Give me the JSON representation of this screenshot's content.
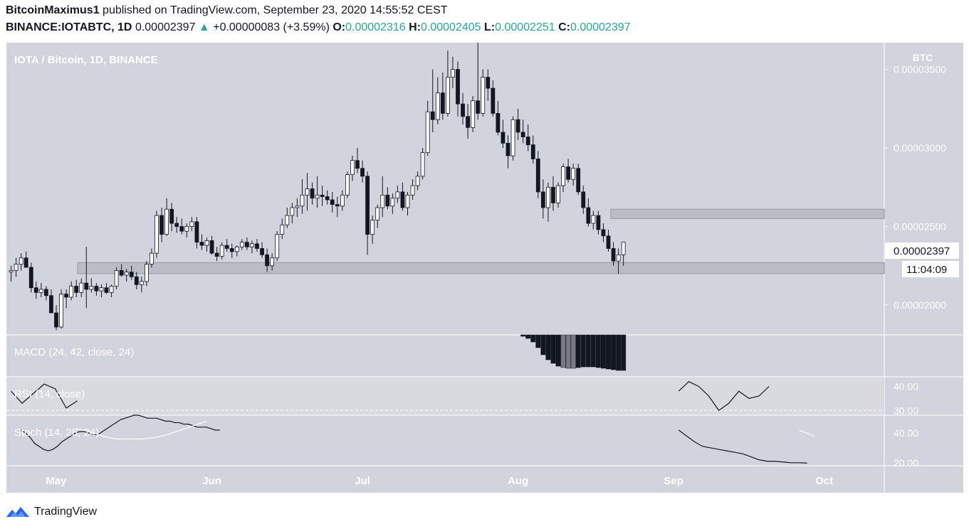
{
  "header": {
    "author": "BitcoinMaximus1",
    "published_text": "published on TradingView.com, September 23, 2020 14:55:52 CEST",
    "symbol": "BINANCE:IOTABTC, 1D",
    "last": "0.00002397",
    "change": "+0.00000083 (+3.59%)",
    "o_label": "O:",
    "o_val": "0.00002316",
    "h_label": "H:",
    "h_val": "0.00002405",
    "l_label": "L:",
    "l_val": "0.00002251",
    "c_label": "C:",
    "c_val": "0.00002397"
  },
  "footer": {
    "brand": "TradingView",
    "logo_icon": "tradingview-logo-icon"
  },
  "colors": {
    "chart_bg": "#d1d4dc",
    "bull_fill": "#ffffff",
    "bear_fill": "#131722",
    "zone": "#b2b5be",
    "accent": "#26a69a"
  },
  "chart_data": {
    "type": "candlestick",
    "title": "IOTA / Bitcoin, 1D, BINANCE",
    "currency": "BTC",
    "y_ticks": [
      "0.00003500",
      "0.00003000",
      "0.00002500",
      "0.00002000"
    ],
    "y_tick_values": [
      3.5e-05,
      3e-05,
      2.5e-05,
      2e-05
    ],
    "ylim": [
      1.81e-05,
      3.67e-05
    ],
    "last_price_label": "0.00002397",
    "countdown_label": "11:04:09",
    "x_labels": [
      "May",
      "Jun",
      "Jul",
      "Aug",
      "Sep",
      "Oct"
    ],
    "x_label_days": [
      0,
      31,
      61,
      92,
      123,
      153
    ],
    "day_zero": "2020-05-01",
    "support_zones": [
      {
        "from": 2.2e-05,
        "to": 2.27e-05
      },
      {
        "from": 2.55e-05,
        "to": 2.61e-05
      }
    ],
    "candles_ohlc": [
      [
        2.21e-05,
        2.25e-05,
        2.15e-05,
        2.22e-05
      ],
      [
        2.22e-05,
        2.3e-05,
        2.18e-05,
        2.26e-05
      ],
      [
        2.26e-05,
        2.33e-05,
        2.22e-05,
        2.3e-05
      ],
      [
        2.3e-05,
        2.34e-05,
        2.25e-05,
        2.24e-05
      ],
      [
        2.24e-05,
        2.27e-05,
        2.08e-05,
        2.11e-05
      ],
      [
        2.11e-05,
        2.15e-05,
        2.04e-05,
        2.08e-05
      ],
      [
        2.08e-05,
        2.14e-05,
        2.05e-05,
        2.1e-05
      ],
      [
        2.1e-05,
        2.12e-05,
        2.03e-05,
        2.06e-05
      ],
      [
        2.06e-05,
        2.1e-05,
        2e-05,
        1.95e-05
      ],
      [
        1.95e-05,
        2e-05,
        1.84e-05,
        1.86e-05
      ],
      [
        1.86e-05,
        2.1e-05,
        1.85e-05,
        2.07e-05
      ],
      [
        2.07e-05,
        2.1e-05,
        1.98e-05,
        2.05e-05
      ],
      [
        2.05e-05,
        2.15e-05,
        2.03e-05,
        2.12e-05
      ],
      [
        2.12e-05,
        2.16e-05,
        2.05e-05,
        2.08e-05
      ],
      [
        2.08e-05,
        2.17e-05,
        2.05e-05,
        2.14e-05
      ],
      [
        2.14e-05,
        2.37e-05,
        1.98e-05,
        2.1e-05
      ],
      [
        2.1e-05,
        2.17e-05,
        2.08e-05,
        2.12e-05
      ],
      [
        2.12e-05,
        2.14e-05,
        2.06e-05,
        2.09e-05
      ],
      [
        2.09e-05,
        2.13e-05,
        2.05e-05,
        2.11e-05
      ],
      [
        2.11e-05,
        2.14e-05,
        2.07e-05,
        2.08e-05
      ],
      [
        2.08e-05,
        2.13e-05,
        2.05e-05,
        2.12e-05
      ],
      [
        2.12e-05,
        2.24e-05,
        2.1e-05,
        2.22e-05
      ],
      [
        2.22e-05,
        2.26e-05,
        2.18e-05,
        2.19e-05
      ],
      [
        2.19e-05,
        2.23e-05,
        2.15e-05,
        2.21e-05
      ],
      [
        2.21e-05,
        2.25e-05,
        2.16e-05,
        2.18e-05
      ],
      [
        2.18e-05,
        2.21e-05,
        2.1e-05,
        2.13e-05
      ],
      [
        2.13e-05,
        2.18e-05,
        2.08e-05,
        2.15e-05
      ],
      [
        2.15e-05,
        2.28e-05,
        2.12e-05,
        2.26e-05
      ],
      [
        2.26e-05,
        2.36e-05,
        2.24e-05,
        2.33e-05
      ],
      [
        2.33e-05,
        2.6e-05,
        2.3e-05,
        2.57e-05
      ],
      [
        2.57e-05,
        2.62e-05,
        2.4e-05,
        2.45e-05
      ],
      [
        2.45e-05,
        2.68e-05,
        2.44e-05,
        2.61e-05
      ],
      [
        2.61e-05,
        2.65e-05,
        2.47e-05,
        2.52e-05
      ],
      [
        2.52e-05,
        2.56e-05,
        2.46e-05,
        2.5e-05
      ],
      [
        2.5e-05,
        2.55e-05,
        2.45e-05,
        2.47e-05
      ],
      [
        2.47e-05,
        2.52e-05,
        2.43e-05,
        2.5e-05
      ],
      [
        2.5e-05,
        2.56e-05,
        2.47e-05,
        2.53e-05
      ],
      [
        2.53e-05,
        2.56e-05,
        2.36e-05,
        2.4e-05
      ],
      [
        2.4e-05,
        2.45e-05,
        2.35e-05,
        2.38e-05
      ],
      [
        2.38e-05,
        2.43e-05,
        2.34e-05,
        2.41e-05
      ],
      [
        2.41e-05,
        2.44e-05,
        2.32e-05,
        2.33e-05
      ],
      [
        2.33e-05,
        2.37e-05,
        2.28e-05,
        2.31e-05
      ],
      [
        2.31e-05,
        2.4e-05,
        2.29e-05,
        2.38e-05
      ],
      [
        2.38e-05,
        2.42e-05,
        2.34e-05,
        2.36e-05
      ],
      [
        2.36e-05,
        2.39e-05,
        2.3e-05,
        2.34e-05
      ],
      [
        2.34e-05,
        2.38e-05,
        2.31e-05,
        2.37e-05
      ],
      [
        2.37e-05,
        2.42e-05,
        2.35e-05,
        2.4e-05
      ],
      [
        2.4e-05,
        2.43e-05,
        2.35e-05,
        2.37e-05
      ],
      [
        2.37e-05,
        2.41e-05,
        2.33e-05,
        2.39e-05
      ],
      [
        2.39e-05,
        2.42e-05,
        2.34e-05,
        2.36e-05
      ],
      [
        2.36e-05,
        2.4e-05,
        2.3e-05,
        2.32e-05
      ],
      [
        2.32e-05,
        2.36e-05,
        2.21e-05,
        2.25e-05
      ],
      [
        2.25e-05,
        2.33e-05,
        2.22e-05,
        2.3e-05
      ],
      [
        2.3e-05,
        2.47e-05,
        2.28e-05,
        2.45e-05
      ],
      [
        2.45e-05,
        2.55e-05,
        2.42e-05,
        2.51e-05
      ],
      [
        2.51e-05,
        2.62e-05,
        2.49e-05,
        2.57e-05
      ],
      [
        2.57e-05,
        2.65e-05,
        2.52e-05,
        2.62e-05
      ],
      [
        2.62e-05,
        2.68e-05,
        2.56e-05,
        2.63e-05
      ],
      [
        2.63e-05,
        2.8e-05,
        2.58e-05,
        2.7e-05
      ],
      [
        2.7e-05,
        2.84e-05,
        2.6e-05,
        2.74e-05
      ],
      [
        2.74e-05,
        2.78e-05,
        2.64e-05,
        2.68e-05
      ],
      [
        2.68e-05,
        2.82e-05,
        2.62e-05,
        2.7e-05
      ],
      [
        2.7e-05,
        2.76e-05,
        2.63e-05,
        2.69e-05
      ],
      [
        2.69e-05,
        2.73e-05,
        2.64e-05,
        2.67e-05
      ],
      [
        2.67e-05,
        2.72e-05,
        2.59e-05,
        2.64e-05
      ],
      [
        2.64e-05,
        2.69e-05,
        2.56e-05,
        2.63e-05
      ],
      [
        2.63e-05,
        2.73e-05,
        2.6e-05,
        2.7e-05
      ],
      [
        2.7e-05,
        2.85e-05,
        2.68e-05,
        2.83e-05
      ],
      [
        2.83e-05,
        2.95e-05,
        2.79e-05,
        2.92e-05
      ],
      [
        2.92e-05,
        3e-05,
        2.84e-05,
        2.87e-05
      ],
      [
        2.87e-05,
        2.92e-05,
        2.78e-05,
        2.82e-05
      ],
      [
        2.82e-05,
        2.85e-05,
        2.32e-05,
        2.45e-05
      ],
      [
        2.45e-05,
        2.57e-05,
        2.39e-05,
        2.54e-05
      ],
      [
        2.54e-05,
        2.64e-05,
        2.49e-05,
        2.62e-05
      ],
      [
        2.62e-05,
        2.82e-05,
        2.56e-05,
        2.7e-05
      ],
      [
        2.7e-05,
        2.75e-05,
        2.61e-05,
        2.63e-05
      ],
      [
        2.63e-05,
        2.71e-05,
        2.58e-05,
        2.68e-05
      ],
      [
        2.68e-05,
        2.76e-05,
        2.65e-05,
        2.72e-05
      ],
      [
        2.72e-05,
        2.78e-05,
        2.6e-05,
        2.62e-05
      ],
      [
        2.62e-05,
        2.72e-05,
        2.57e-05,
        2.7e-05
      ],
      [
        2.7e-05,
        2.8e-05,
        2.67e-05,
        2.76e-05
      ],
      [
        2.76e-05,
        2.85e-05,
        2.73e-05,
        2.82e-05
      ],
      [
        2.82e-05,
        3e-05,
        2.8e-05,
        2.97e-05
      ],
      [
        2.97e-05,
        3.3e-05,
        2.95e-05,
        3.23e-05
      ],
      [
        3.23e-05,
        3.5e-05,
        3.1e-05,
        3.18e-05
      ],
      [
        3.18e-05,
        3.45e-05,
        3.15e-05,
        3.35e-05
      ],
      [
        3.35e-05,
        3.48e-05,
        3.18e-05,
        3.22e-05
      ],
      [
        3.22e-05,
        3.62e-05,
        3.2e-05,
        3.45e-05
      ],
      [
        3.45e-05,
        3.58e-05,
        3.38e-05,
        3.5e-05
      ],
      [
        3.5e-05,
        3.55e-05,
        3.2e-05,
        3.28e-05
      ],
      [
        3.28e-05,
        3.35e-05,
        3.15e-05,
        3.2e-05
      ],
      [
        3.2e-05,
        3.28e-05,
        3.06e-05,
        3.13e-05
      ],
      [
        3.13e-05,
        3.33e-05,
        3.1e-05,
        3.3e-05
      ],
      [
        3.3e-05,
        3.68e-05,
        3.18e-05,
        3.22e-05
      ],
      [
        3.22e-05,
        3.5e-05,
        3.2e-05,
        3.45e-05
      ],
      [
        3.45e-05,
        3.5e-05,
        3.3e-05,
        3.38e-05
      ],
      [
        3.38e-05,
        3.43e-05,
        3.2e-05,
        3.22e-05
      ],
      [
        3.22e-05,
        3.3e-05,
        3.08e-05,
        3.1e-05
      ],
      [
        3.1e-05,
        3.18e-05,
        3e-05,
        3.03e-05
      ],
      [
        3.03e-05,
        3.08e-05,
        2.87e-05,
        2.95e-05
      ],
      [
        2.95e-05,
        3.2e-05,
        2.92e-05,
        3.18e-05
      ],
      [
        3.18e-05,
        3.25e-05,
        3.05e-05,
        3.1e-05
      ],
      [
        3.1e-05,
        3.18e-05,
        3.03e-05,
        3.07e-05
      ],
      [
        3.07e-05,
        3.15e-05,
        2.98e-05,
        3.02e-05
      ],
      [
        3.02e-05,
        3.08e-05,
        2.9e-05,
        2.93e-05
      ],
      [
        2.93e-05,
        2.98e-05,
        2.68e-05,
        2.72e-05
      ],
      [
        2.72e-05,
        2.8e-05,
        2.55e-05,
        2.62e-05
      ],
      [
        2.62e-05,
        2.78e-05,
        2.53e-05,
        2.75e-05
      ],
      [
        2.75e-05,
        2.82e-05,
        2.6e-05,
        2.65e-05
      ],
      [
        2.65e-05,
        2.78e-05,
        2.62e-05,
        2.76e-05
      ],
      [
        2.76e-05,
        2.9e-05,
        2.72e-05,
        2.88e-05
      ],
      [
        2.88e-05,
        2.93e-05,
        2.78e-05,
        2.8e-05
      ],
      [
        2.8e-05,
        2.9e-05,
        2.76e-05,
        2.87e-05
      ],
      [
        2.87e-05,
        2.9e-05,
        2.7e-05,
        2.72e-05
      ],
      [
        2.72e-05,
        2.76e-05,
        2.58e-05,
        2.62e-05
      ],
      [
        2.62e-05,
        2.68e-05,
        2.5e-05,
        2.52e-05
      ],
      [
        2.52e-05,
        2.6e-05,
        2.48e-05,
        2.57e-05
      ],
      [
        2.57e-05,
        2.6e-05,
        2.45e-05,
        2.48e-05
      ],
      [
        2.48e-05,
        2.52e-05,
        2.4e-05,
        2.44e-05
      ],
      [
        2.44e-05,
        2.48e-05,
        2.34e-05,
        2.36e-05
      ],
      [
        2.36e-05,
        2.4e-05,
        2.25e-05,
        2.28e-05
      ],
      [
        2.28e-05,
        2.36e-05,
        2.2e-05,
        2.32e-05
      ],
      [
        2.32e-05,
        2.4e-05,
        2.25e-05,
        2.4e-05
      ]
    ],
    "macd": {
      "label": "MACD (24, 42, close, 24)",
      "histogram": [
        -0.2,
        -0.5,
        -1.0,
        -1.8,
        -2.8,
        -3.5,
        -4.0,
        -4.4,
        -4.6,
        -4.7,
        -4.7,
        -4.6,
        -4.5,
        -4.5,
        -4.5,
        -4.6,
        -4.7,
        -4.8,
        -4.9,
        -5.0,
        -5.0
      ]
    },
    "rsi": {
      "label": "RSI (14, close)",
      "ticks": [
        "40.00",
        "30.00"
      ],
      "tick_values": [
        40,
        30
      ],
      "values": [
        38,
        33,
        37,
        41,
        39,
        31,
        34,
        38,
        42,
        40,
        36,
        30,
        33,
        38,
        35,
        36,
        40
      ]
    },
    "stoch": {
      "label": "Stoch (14, 28, 24)",
      "ticks": [
        "40.00",
        "20.00"
      ],
      "tick_values": [
        40,
        20
      ],
      "k": [
        42,
        40,
        37,
        33,
        31,
        29,
        28,
        29,
        31,
        34,
        36,
        38,
        40,
        41,
        41,
        40,
        39,
        39,
        41,
        43,
        45,
        47,
        49,
        50,
        51,
        52,
        52,
        51,
        50,
        50,
        50,
        49,
        48,
        48,
        47,
        47,
        46,
        46,
        45,
        44,
        44,
        44,
        43,
        42,
        42
      ],
      "k_late": [
        42,
        38,
        34,
        31,
        30,
        29,
        28,
        27,
        26,
        24,
        22,
        21,
        21,
        20.5,
        20,
        20,
        19.8
      ],
      "d": [
        43,
        41,
        38,
        36,
        36,
        36,
        37,
        39,
        42,
        45,
        48
      ],
      "d_late": [
        42,
        40,
        38
      ]
    }
  }
}
